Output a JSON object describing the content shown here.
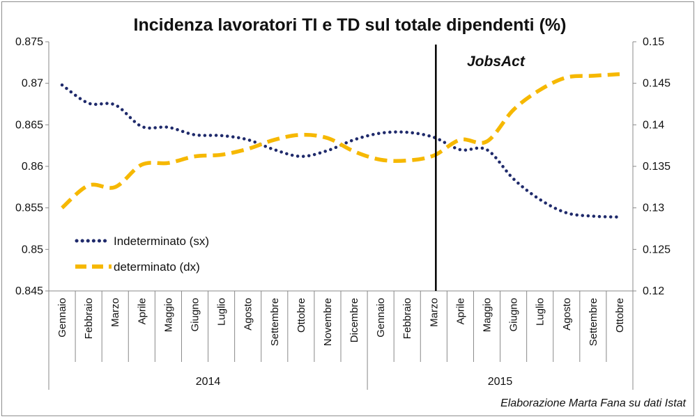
{
  "chart_data": {
    "type": "line",
    "title": "Incidenza lavoratori TI e TD sul totale dipendenti (%)",
    "categories": [
      "Gennaio",
      "Febbraio",
      "Marzo",
      "Aprile",
      "Maggio",
      "Giugno",
      "Luglio",
      "Agosto",
      "Settembre",
      "Ottobre",
      "Novembre",
      "Dicembre",
      "Gennaio",
      "Febbraio",
      "Marzo",
      "Aprile",
      "Maggio",
      "Giugno",
      "Luglio",
      "Agosto",
      "Settembre",
      "Ottobre"
    ],
    "years": [
      {
        "label": "2014",
        "count": 12
      },
      {
        "label": "2015",
        "count": 10
      }
    ],
    "y_left": {
      "ylim": [
        0.845,
        0.875
      ],
      "ticks": [
        "0.845",
        "0.85",
        "0.855",
        "0.86",
        "0.865",
        "0.87",
        "0.875"
      ]
    },
    "y_right": {
      "ylim": [
        0.12,
        0.15
      ],
      "ticks": [
        "0.12",
        "0.125",
        "0.13",
        "0.135",
        "0.14",
        "0.145",
        "0.15"
      ]
    },
    "series": [
      {
        "name": "Indeterminato (sx)",
        "axis": "left",
        "color": "#1f2a6b",
        "style": "dotted",
        "values": [
          0.8698,
          0.8676,
          0.8674,
          0.8648,
          0.8647,
          0.8638,
          0.8637,
          0.8632,
          0.862,
          0.8612,
          0.8619,
          0.8632,
          0.864,
          0.8641,
          0.8635,
          0.862,
          0.862,
          0.8585,
          0.856,
          0.8544,
          0.854,
          0.8539
        ]
      },
      {
        "name": "determinato (dx)",
        "axis": "right",
        "color": "#f6b800",
        "style": "dashed",
        "values": [
          0.13,
          0.1327,
          0.1325,
          0.1352,
          0.1354,
          0.1362,
          0.1364,
          0.1371,
          0.1382,
          0.1388,
          0.1384,
          0.1368,
          0.1358,
          0.1357,
          0.1363,
          0.1382,
          0.138,
          0.1418,
          0.1442,
          0.1457,
          0.1459,
          0.1461
        ]
      }
    ],
    "annotation": {
      "label": "JobsAct",
      "at_index": 14
    },
    "credit": "Elaborazione Marta Fana su dati Istat"
  }
}
